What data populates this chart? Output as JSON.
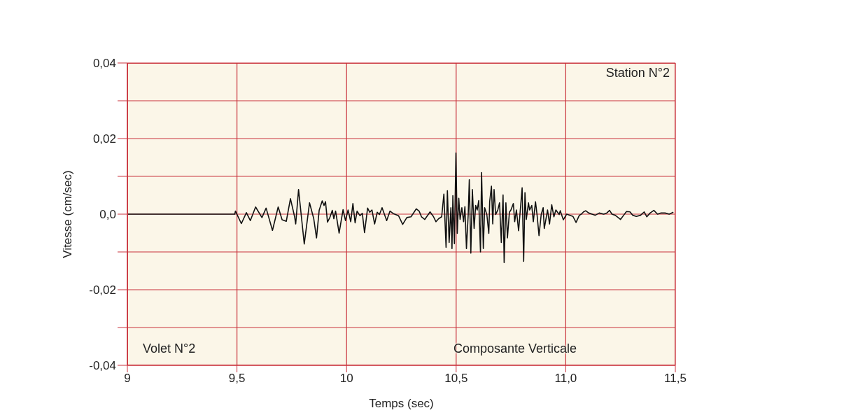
{
  "chart_data": {
    "type": "line",
    "xlabel": "Temps (sec)",
    "ylabel": "Vitesse (cm/sec)",
    "annotations": [
      "Station N°2",
      "Volet N°2",
      "Composante Verticale"
    ],
    "xlim": [
      9,
      11.5
    ],
    "xticks": [
      {
        "value": 9,
        "label": "9"
      },
      {
        "value": 9.5,
        "label": "9,5"
      },
      {
        "value": 10,
        "label": "10"
      },
      {
        "value": 10.5,
        "label": "10,5"
      },
      {
        "value": 11,
        "label": "11,0"
      },
      {
        "value": 11.5,
        "label": "11,5"
      }
    ],
    "ylim": [
      -0.04,
      0.04
    ],
    "yticks": [
      {
        "value": -0.04,
        "label": "-0,04"
      },
      {
        "value": -0.03,
        "label": null
      },
      {
        "value": -0.02,
        "label": "-0,02"
      },
      {
        "value": -0.01,
        "label": null
      },
      {
        "value": 0,
        "label": "0,0"
      },
      {
        "value": 0.01,
        "label": null
      },
      {
        "value": 0.02,
        "label": "0,02"
      },
      {
        "value": 0.03,
        "label": null
      },
      {
        "value": 0.04,
        "label": "0,04"
      }
    ],
    "grid": true,
    "legend": false,
    "marker": "none",
    "line_style": "solid",
    "series": [
      {
        "color": "#111111",
        "x": [
          9,
          9.49,
          9.493,
          9.52,
          9.543,
          9.561,
          9.585,
          9.614,
          9.633,
          9.662,
          9.688,
          9.706,
          9.725,
          9.744,
          9.763,
          9.768,
          9.781,
          9.807,
          9.831,
          9.85,
          9.863,
          9.875,
          9.889,
          9.897,
          9.904,
          9.913,
          9.923,
          9.935,
          9.942,
          9.95,
          9.966,
          9.984,
          9.995,
          10.007,
          10.019,
          10.029,
          10.039,
          10.048,
          10.061,
          10.072,
          10.082,
          10.096,
          10.106,
          10.116,
          10.128,
          10.14,
          10.15,
          10.162,
          10.183,
          10.198,
          10.212,
          10.237,
          10.256,
          10.275,
          10.294,
          10.318,
          10.331,
          10.342,
          10.357,
          10.381,
          10.396,
          10.408,
          10.42,
          10.434,
          10.444,
          10.454,
          10.46,
          10.468,
          10.476,
          10.481,
          10.485,
          10.492,
          10.499,
          10.505,
          10.512,
          10.518,
          10.526,
          10.534,
          10.54,
          10.547,
          10.555,
          10.56,
          10.567,
          10.574,
          10.582,
          10.589,
          10.596,
          10.603,
          10.611,
          10.616,
          10.624,
          10.63,
          10.64,
          10.649,
          10.653,
          10.661,
          10.667,
          10.673,
          10.68,
          10.69,
          10.698,
          10.706,
          10.714,
          10.719,
          10.727,
          10.734,
          10.743,
          10.75,
          10.761,
          10.767,
          10.775,
          10.785,
          10.791,
          10.801,
          10.808,
          10.814,
          10.82,
          10.83,
          10.835,
          10.845,
          10.852,
          10.862,
          10.869,
          10.878,
          10.888,
          10.897,
          10.902,
          10.917,
          10.926,
          10.936,
          10.946,
          10.955,
          10.97,
          10.975,
          10.989,
          11.004,
          11.018,
          11.033,
          11.047,
          11.062,
          11.071,
          11.081,
          11.091,
          11.105,
          11.12,
          11.134,
          11.153,
          11.173,
          11.187,
          11.2,
          11.211,
          11.226,
          11.25,
          11.264,
          11.277,
          11.293,
          11.306,
          11.322,
          11.341,
          11.358,
          11.37,
          11.385,
          11.402,
          11.419,
          11.433,
          11.453,
          11.472,
          11.491
        ],
        "values": [
          0,
          0,
          0.0008,
          -0.0025,
          0.0004,
          -0.0017,
          0.0019,
          -0.0009,
          0.0016,
          -0.0043,
          0.0019,
          -0.0015,
          -0.0019,
          0.0041,
          -0.0007,
          -0.0026,
          0.0065,
          -0.0079,
          0.003,
          -0.0011,
          -0.0063,
          0.001,
          0.0035,
          0.0023,
          0.0033,
          -0.0021,
          -0.001,
          0.001,
          -0.0012,
          0.0008,
          -0.005,
          0.0012,
          -0.0017,
          0.0011,
          -0.002,
          0.0028,
          -0.0023,
          0.0008,
          -0.0004,
          0.0002,
          -0.0049,
          0.0016,
          0.0005,
          0.0011,
          -0.0026,
          0.0005,
          -0.0001,
          0.0017,
          -0.0017,
          0.0008,
          0.0002,
          -0.0004,
          -0.0027,
          -0.0009,
          -0.0007,
          0.0014,
          0.0008,
          -0.0007,
          -0.0014,
          0.0006,
          -0.0006,
          -0.002,
          -0.0012,
          -0.0007,
          0.0053,
          -0.0088,
          0.0062,
          -0.0075,
          0.0017,
          -0.0091,
          0.0049,
          -0.0078,
          0.0162,
          -0.0051,
          0.0042,
          -0.0014,
          0.0017,
          -0.002,
          0.002,
          -0.0091,
          -0.0001,
          0.0091,
          -0.0103,
          0.0065,
          -0.0038,
          0.0023,
          0.0011,
          0.0036,
          -0.01,
          0.011,
          -0.0091,
          0.0017,
          -0.0001,
          -0.0051,
          0.0033,
          0.0074,
          -0.0026,
          0.0065,
          -0.0001,
          0.0011,
          0.003,
          -0.0075,
          0.0051,
          -0.0128,
          0.003,
          -0.0063,
          0.0005,
          0.0011,
          0.0028,
          -0.002,
          0.0011,
          -0.0044,
          -0.0001,
          0.007,
          -0.0125,
          0.0057,
          -0.0014,
          0.003,
          0.0011,
          0.0023,
          -0.002,
          0.0033,
          -0.0001,
          -0.0057,
          -0.0001,
          0.0017,
          -0.0038,
          0.0011,
          -0.0026,
          0.0025,
          -0.0007,
          0.0011,
          -0.0001,
          0.0009,
          -0.0015,
          0,
          -0.0003,
          -0.0006,
          -0.0022,
          -0.0003,
          0,
          0.0006,
          0.0009,
          0.0003,
          0,
          -0.0003,
          0.0003,
          0,
          0.0003,
          0.001,
          0,
          -0.0003,
          -0.0014,
          -0.0003,
          0.0007,
          0.0006,
          -0.0003,
          -0.0006,
          -0.0003,
          0.0006,
          -0.0007,
          0.0003,
          0.001,
          0,
          0.0003,
          0.0003,
          0,
          0.0005
        ]
      }
    ]
  }
}
